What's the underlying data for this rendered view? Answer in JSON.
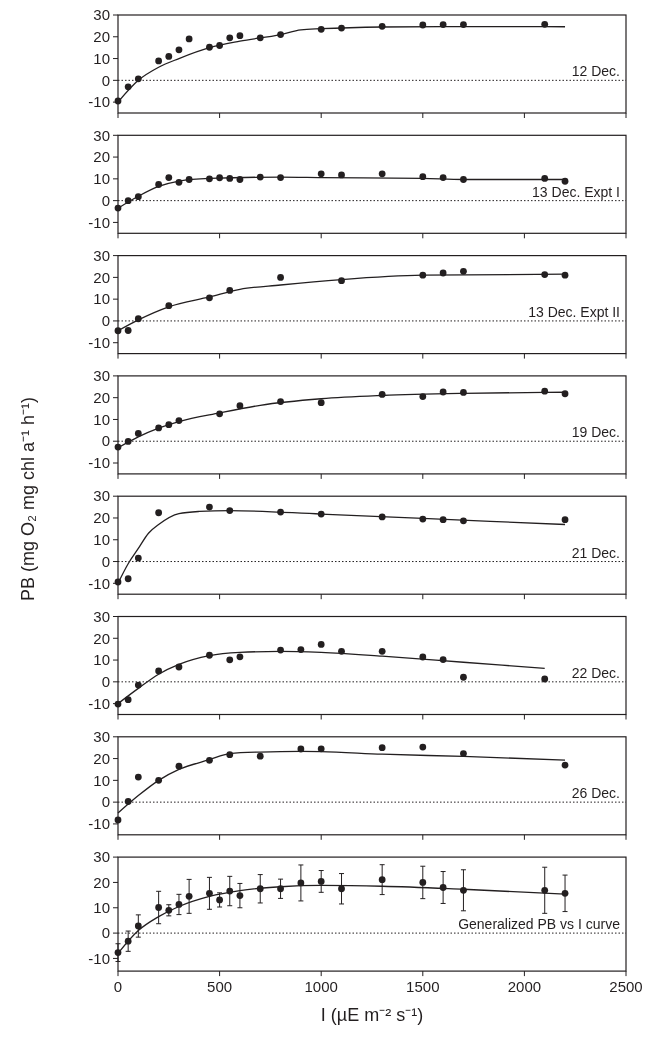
{
  "chart_data": [
    {
      "type": "scatter",
      "annotations": [
        "12 Dec."
      ],
      "xlim": [
        0,
        2500
      ],
      "xticks": [
        0,
        500,
        1000,
        1500,
        2000,
        2500
      ],
      "ylim": [
        -15,
        30
      ],
      "yticks": [
        -10,
        0,
        10,
        20,
        30
      ],
      "tick_labels": "y",
      "ref_lines": [
        {
          "axis": "y",
          "value": 0,
          "line_style": "dotted"
        }
      ],
      "series": [
        {
          "marker": "circle",
          "color": "#231f20",
          "x": [
            0,
            50,
            100,
            200,
            250,
            300,
            350,
            450,
            500,
            550,
            600,
            700,
            800,
            1000,
            1100,
            1300,
            1500,
            1600,
            1700,
            2100
          ],
          "values": [
            -9.5,
            -3,
            0.7,
            8.9,
            11,
            14,
            19,
            15.2,
            16,
            19.5,
            20.5,
            19.5,
            21,
            23.4,
            24,
            24.8,
            25.4,
            25.6,
            25.6,
            25.7
          ]
        },
        {
          "type": "line",
          "color": "#231f20",
          "x": [
            0,
            100,
            200,
            300,
            450,
            600,
            800,
            900,
            1000,
            1300,
            1600,
            2200
          ],
          "values": [
            -10,
            0,
            6,
            10,
            15,
            18,
            21,
            23.2,
            23.7,
            24.5,
            24.7,
            24.6
          ]
        }
      ]
    },
    {
      "type": "scatter",
      "annotations": [
        "13 Dec. Expt I"
      ],
      "xlim": [
        0,
        2500
      ],
      "xticks": [
        0,
        500,
        1000,
        1500,
        2000,
        2500
      ],
      "ylim": [
        -15,
        30
      ],
      "yticks": [
        -10,
        0,
        10,
        20,
        30
      ],
      "tick_labels": "y",
      "ref_lines": [
        {
          "axis": "y",
          "value": 0,
          "line_style": "dotted"
        }
      ],
      "series": [
        {
          "marker": "circle",
          "color": "#231f20",
          "x": [
            0,
            50,
            100,
            200,
            250,
            300,
            350,
            450,
            500,
            550,
            600,
            700,
            800,
            1000,
            1100,
            1300,
            1500,
            1600,
            1700,
            2100,
            2200
          ],
          "values": [
            -3.4,
            0,
            1.8,
            7.4,
            10.6,
            8.4,
            9.7,
            10,
            10.5,
            10.2,
            9.7,
            10.8,
            10.6,
            12.3,
            11.8,
            12.3,
            11,
            10.6,
            9.7,
            10.2,
            8.9
          ]
        },
        {
          "type": "line",
          "color": "#231f20",
          "x": [
            0,
            100,
            200,
            300,
            450,
            800,
            1000,
            1500,
            1700,
            2200
          ],
          "values": [
            -3.5,
            2,
            6.5,
            9,
            10.2,
            10.8,
            10.6,
            10.2,
            9.7,
            9.7
          ]
        }
      ]
    },
    {
      "type": "scatter",
      "annotations": [
        "13 Dec. Expt II"
      ],
      "xlim": [
        0,
        2500
      ],
      "xticks": [
        0,
        500,
        1000,
        1500,
        2000,
        2500
      ],
      "ylim": [
        -15,
        30
      ],
      "yticks": [
        -10,
        0,
        10,
        20,
        30
      ],
      "tick_labels": "y",
      "ref_lines": [
        {
          "axis": "y",
          "value": 0,
          "line_style": "dotted"
        }
      ],
      "series": [
        {
          "marker": "circle",
          "color": "#231f20",
          "x": [
            0,
            50,
            100,
            250,
            450,
            550,
            800,
            1100,
            1500,
            1600,
            1700,
            2100,
            2200
          ],
          "values": [
            -4.5,
            -4.4,
            1,
            7,
            10.6,
            14,
            20,
            18.5,
            21,
            22,
            22.8,
            21.3,
            21
          ]
        },
        {
          "type": "line",
          "color": "#231f20",
          "x": [
            0,
            100,
            250,
            450,
            600,
            800,
            1100,
            1500,
            2200
          ],
          "values": [
            -4.5,
            0.5,
            6.5,
            11,
            14.5,
            16.5,
            19,
            21,
            21.5
          ]
        }
      ]
    },
    {
      "type": "scatter",
      "annotations": [
        "19 Dec."
      ],
      "ylabel": "PB (mg O₂ mg chl a⁻¹ h⁻¹)",
      "xlim": [
        0,
        2500
      ],
      "xticks": [
        0,
        500,
        1000,
        1500,
        2000,
        2500
      ],
      "ylim": [
        -15,
        30
      ],
      "yticks": [
        -10,
        0,
        10,
        20,
        30
      ],
      "tick_labels": "y",
      "ref_lines": [
        {
          "axis": "y",
          "value": 0,
          "line_style": "dotted"
        }
      ],
      "series": [
        {
          "marker": "circle",
          "color": "#231f20",
          "x": [
            0,
            50,
            100,
            200,
            250,
            300,
            500,
            600,
            800,
            1000,
            1300,
            1500,
            1600,
            1700,
            2100,
            2200
          ],
          "values": [
            -2.7,
            -0.1,
            3.6,
            6.1,
            7.6,
            9.5,
            12.6,
            16.3,
            18.2,
            17.7,
            21.5,
            20.5,
            22.6,
            22.4,
            23,
            21.8
          ]
        },
        {
          "type": "line",
          "color": "#231f20",
          "x": [
            0,
            100,
            200,
            300,
            500,
            700,
            1000,
            1300,
            1700,
            2200
          ],
          "values": [
            -3,
            2,
            6,
            9,
            13,
            16.5,
            19.5,
            21,
            22,
            22.5
          ]
        }
      ]
    },
    {
      "type": "scatter",
      "annotations": [
        "21 Dec."
      ],
      "xlim": [
        0,
        2500
      ],
      "xticks": [
        0,
        500,
        1000,
        1500,
        2000,
        2500
      ],
      "ylim": [
        -15,
        30
      ],
      "yticks": [
        -10,
        0,
        10,
        20,
        30
      ],
      "tick_labels": "y",
      "ref_lines": [
        {
          "axis": "y",
          "value": 0,
          "line_style": "dotted"
        }
      ],
      "series": [
        {
          "marker": "circle",
          "color": "#231f20",
          "x": [
            0,
            50,
            100,
            200,
            450,
            550,
            800,
            1000,
            1300,
            1500,
            1600,
            1700,
            2200
          ],
          "values": [
            -9.4,
            -7.9,
            1.6,
            22.4,
            25,
            23.4,
            22.7,
            21.8,
            20.5,
            19.5,
            19.2,
            18.7,
            19.2
          ]
        },
        {
          "type": "line",
          "color": "#231f20",
          "x": [
            0,
            50,
            100,
            150,
            200,
            300,
            400,
            550,
            1000,
            1500,
            2200
          ],
          "values": [
            -10,
            -1,
            6,
            13,
            17,
            22,
            23,
            23.4,
            21.8,
            19.8,
            17
          ]
        }
      ]
    },
    {
      "type": "scatter",
      "annotations": [
        "22 Dec."
      ],
      "xlim": [
        0,
        2500
      ],
      "xticks": [
        0,
        500,
        1000,
        1500,
        2000,
        2500
      ],
      "ylim": [
        -15,
        30
      ],
      "yticks": [
        -10,
        0,
        10,
        20,
        30
      ],
      "tick_labels": "y",
      "ref_lines": [
        {
          "axis": "y",
          "value": 0,
          "line_style": "dotted"
        }
      ],
      "series": [
        {
          "marker": "circle",
          "color": "#231f20",
          "x": [
            0,
            50,
            100,
            200,
            300,
            450,
            550,
            600,
            800,
            900,
            1000,
            1100,
            1300,
            1500,
            1600,
            1700,
            2100
          ],
          "values": [
            -10.2,
            -8.2,
            -1.5,
            5,
            6.8,
            12.2,
            10.1,
            11.5,
            14.6,
            14.8,
            17.2,
            14,
            14,
            11.4,
            10.2,
            2.1,
            1.3
          ]
        },
        {
          "type": "line",
          "color": "#231f20",
          "x": [
            0,
            100,
            200,
            300,
            450,
            600,
            800,
            1000,
            1300,
            1700,
            2100
          ],
          "values": [
            -10,
            -3,
            3.5,
            8,
            12,
            13.5,
            14,
            13.5,
            11.8,
            9,
            6.2
          ]
        }
      ]
    },
    {
      "type": "scatter",
      "annotations": [
        "26 Dec."
      ],
      "xlim": [
        0,
        2500
      ],
      "xticks": [
        0,
        500,
        1000,
        1500,
        2000,
        2500
      ],
      "ylim": [
        -15,
        30
      ],
      "yticks": [
        -10,
        0,
        10,
        20,
        30
      ],
      "tick_labels": "y",
      "ref_lines": [
        {
          "axis": "y",
          "value": 0,
          "line_style": "dotted"
        }
      ],
      "series": [
        {
          "marker": "circle",
          "color": "#231f20",
          "x": [
            0,
            50,
            100,
            200,
            300,
            450,
            550,
            700,
            900,
            1000,
            1300,
            1500,
            1700,
            2200
          ],
          "values": [
            -8.2,
            0.3,
            11.5,
            10,
            16.5,
            19.2,
            21.8,
            21.1,
            24.4,
            24.5,
            25,
            25.3,
            22.3,
            17
          ]
        },
        {
          "type": "line",
          "color": "#231f20",
          "x": [
            0,
            100,
            200,
            300,
            450,
            550,
            700,
            900,
            1000,
            1300,
            1700,
            2200
          ],
          "values": [
            -5,
            3,
            10,
            15,
            19.5,
            22.3,
            23,
            23.3,
            23.2,
            22,
            21,
            19.3
          ]
        }
      ]
    },
    {
      "type": "scatter",
      "annotations": [
        "Generalized PB vs I curve"
      ],
      "xlabel": "I (µE m⁻² s⁻¹)",
      "xlim": [
        0,
        2500
      ],
      "xticks": [
        0,
        500,
        1000,
        1500,
        2000,
        2500
      ],
      "ylim": [
        -15,
        30
      ],
      "yticks": [
        -10,
        0,
        10,
        20,
        30
      ],
      "ref_lines": [
        {
          "axis": "y",
          "value": 0,
          "line_style": "dotted"
        }
      ],
      "series": [
        {
          "marker": "circle",
          "color": "#231f20",
          "x": [
            0,
            50,
            100,
            200,
            250,
            300,
            350,
            450,
            500,
            550,
            600,
            700,
            800,
            900,
            1000,
            1100,
            1300,
            1500,
            1600,
            1700,
            2100,
            2200
          ],
          "values": [
            -7.7,
            -3.2,
            2.8,
            10.1,
            9,
            11.3,
            14.5,
            15.7,
            13.1,
            16.6,
            14.8,
            17.5,
            17.5,
            19.8,
            20.4,
            17.5,
            21.1,
            20,
            18,
            16.9,
            16.9,
            15.7
          ],
          "errors": [
            3.5,
            4,
            4.4,
            6.4,
            2.2,
            4,
            6.7,
            6.3,
            2.8,
            5.8,
            4.8,
            5.6,
            3.8,
            7.1,
            4.3,
            6,
            5.9,
            6.4,
            6.3,
            8.1,
            9.1,
            7.2
          ]
        },
        {
          "type": "line",
          "color": "#231f20",
          "x": [
            0,
            100,
            200,
            300,
            450,
            600,
            800,
            1000,
            1300,
            1700,
            2200
          ],
          "values": [
            -8,
            1,
            6.5,
            10.5,
            14.5,
            16.8,
            18.3,
            18.8,
            18.5,
            17.3,
            15.4
          ]
        }
      ]
    }
  ]
}
